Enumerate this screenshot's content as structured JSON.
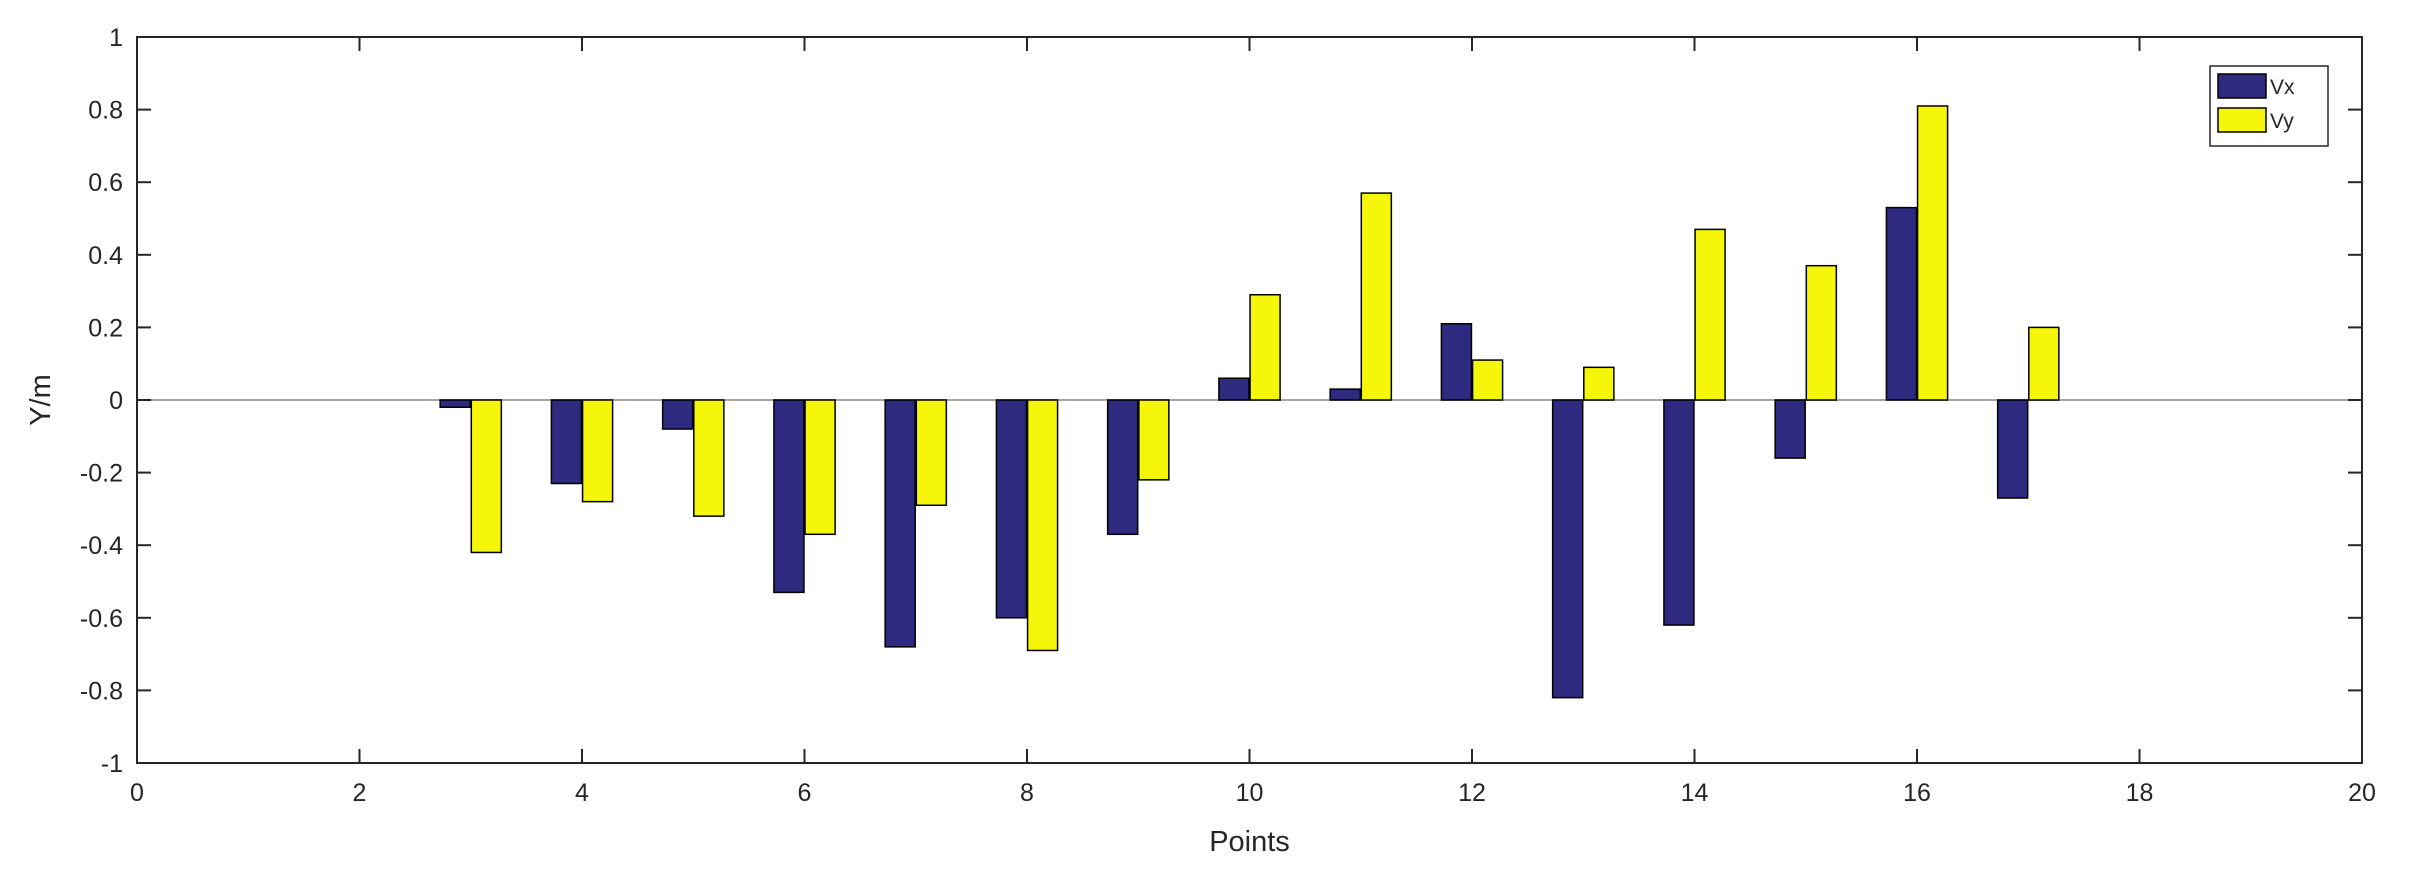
{
  "chart_data": {
    "type": "bar",
    "xlabel": "Points",
    "ylabel": "Y/m",
    "xlim": [
      0,
      20
    ],
    "ylim": [
      -1,
      1
    ],
    "xticks": [
      "0",
      "2",
      "4",
      "6",
      "8",
      "10",
      "12",
      "14",
      "16",
      "18",
      "20"
    ],
    "yticks": [
      "-1",
      "-0.8",
      "-0.6",
      "-0.4",
      "-0.2",
      "0",
      "0.2",
      "0.4",
      "0.6",
      "0.8",
      "1"
    ],
    "x": [
      3,
      4,
      5,
      6,
      7,
      8,
      9,
      10,
      11,
      12,
      13,
      14,
      15,
      16,
      17
    ],
    "series": [
      {
        "name": "Vx",
        "color": "#2e2a7f",
        "values": [
          -0.02,
          -0.23,
          -0.08,
          -0.53,
          -0.68,
          -0.6,
          -0.37,
          0.06,
          0.03,
          0.21,
          -0.82,
          -0.62,
          -0.16,
          0.53,
          -0.27
        ]
      },
      {
        "name": "Vy",
        "color": "#f6f60a",
        "values": [
          -0.42,
          -0.28,
          -0.32,
          -0.37,
          -0.29,
          -0.69,
          -0.22,
          0.29,
          0.57,
          0.11,
          0.09,
          0.47,
          0.37,
          0.81,
          0.2
        ]
      }
    ],
    "grid": false,
    "legend_position": "top-right"
  }
}
